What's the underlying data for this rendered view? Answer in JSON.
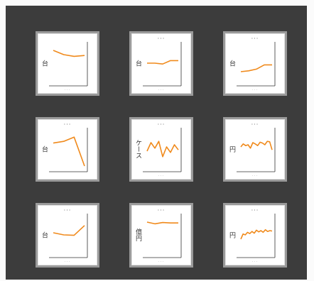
{
  "colors": {
    "background": "#3c3c3c",
    "tile_border": "#9a9a9a",
    "series": "#f08a1c",
    "axis": "#333333"
  },
  "charts": [
    {
      "title": "",
      "ylabel": "台",
      "xlabel": "···",
      "values": [
        8.0,
        7.0,
        6.6,
        6.8
      ]
    },
    {
      "title": "···",
      "ylabel": "台",
      "xlabel": "···",
      "values": [
        5.0,
        5.0,
        4.8,
        5.6,
        5.6
      ]
    },
    {
      "title": "···",
      "ylabel": "台",
      "xlabel": "···",
      "values": [
        3.0,
        3.2,
        3.6,
        4.6,
        4.6
      ]
    },
    {
      "title": "···",
      "ylabel": "台",
      "xlabel": "",
      "values": [
        6.4,
        6.8,
        7.8,
        1.0
      ]
    },
    {
      "title": "···",
      "ylabel": "ケース",
      "xlabel": "···",
      "values": [
        4.5,
        6.5,
        5.2,
        6.8,
        3.2,
        5.5,
        4.2,
        6.0,
        4.8
      ]
    },
    {
      "title": "···",
      "ylabel": "円",
      "xlabel": "···",
      "values": [
        5.5,
        6.2,
        5.8,
        6.0,
        5.2,
        6.5,
        6.2,
        5.8,
        6.6,
        6.4,
        6.0,
        6.8,
        6.7,
        4.8
      ]
    },
    {
      "title": "···",
      "ylabel": "台",
      "xlabel": "···",
      "values": [
        5.5,
        5.0,
        4.9,
        7.2
      ]
    },
    {
      "title": "···",
      "ylabel": "億円",
      "xlabel": "···",
      "values": [
        8.0,
        7.6,
        7.9,
        7.8,
        7.8
      ]
    },
    {
      "title": "···",
      "ylabel": "円",
      "xlabel": "···",
      "values": [
        4.0,
        5.2,
        5.0,
        5.6,
        5.3,
        5.8,
        5.4,
        6.1,
        5.7,
        6.0,
        5.6,
        6.2,
        5.8,
        6.0,
        5.9
      ]
    }
  ]
}
